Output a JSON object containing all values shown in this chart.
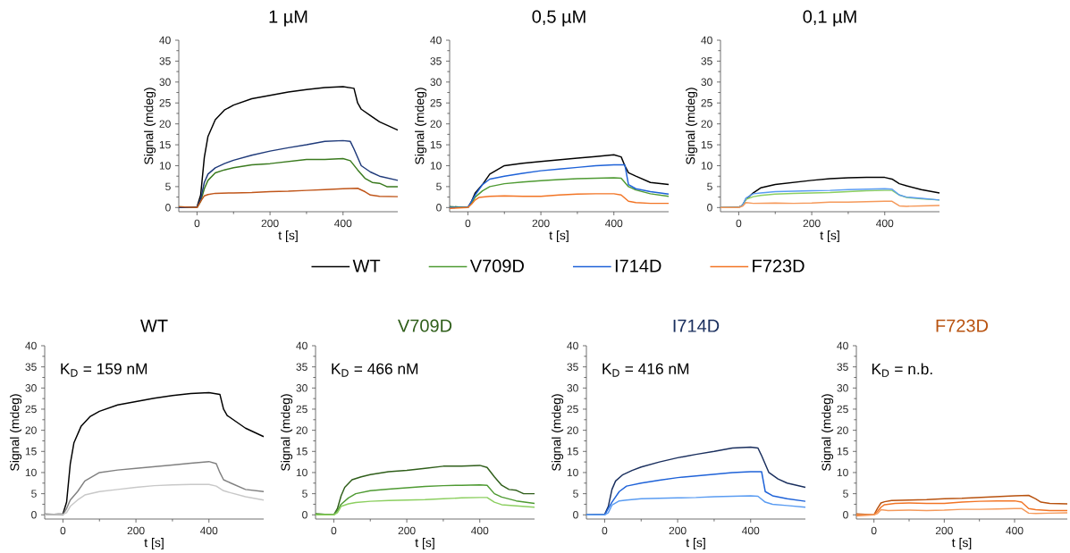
{
  "chart_data": [
    {
      "type": "line",
      "title": "1 µM",
      "xlabel": "t [s]",
      "ylabel": "Signal (mdeg)",
      "xlim": [
        -50,
        550
      ],
      "ylim": [
        -1,
        40
      ],
      "xticks": [
        0,
        200,
        400
      ],
      "yticks": [
        0,
        5,
        10,
        15,
        20,
        25,
        30,
        35,
        40
      ],
      "series": [
        {
          "color": "#000000",
          "x": [
            -50,
            0,
            10,
            20,
            30,
            50,
            75,
            100,
            150,
            200,
            250,
            300,
            350,
            400,
            430,
            440,
            450,
            475,
            500,
            550
          ],
          "values": [
            0,
            0.2,
            3,
            12,
            17,
            21,
            23.3,
            24.5,
            26,
            26.8,
            27.6,
            28.2,
            28.7,
            28.9,
            28.5,
            25,
            23.5,
            22,
            20.5,
            18.5
          ]
        },
        {
          "color": "#3a7a1e",
          "x": [
            -50,
            0,
            10,
            20,
            30,
            50,
            75,
            100,
            150,
            200,
            250,
            300,
            350,
            400,
            420,
            440,
            460,
            480,
            500,
            520,
            550
          ],
          "values": [
            0.2,
            0,
            1.5,
            4.5,
            6.5,
            8.3,
            9,
            9.5,
            10.2,
            10.5,
            11,
            11.5,
            11.5,
            11.7,
            11.2,
            9,
            7,
            6,
            5.8,
            5,
            5
          ]
        },
        {
          "color": "#1f3a7a",
          "x": [
            -50,
            0,
            10,
            20,
            30,
            50,
            75,
            100,
            150,
            200,
            250,
            300,
            350,
            400,
            420,
            430,
            450,
            475,
            500,
            550
          ],
          "values": [
            0,
            0.1,
            2,
            6,
            8,
            9.5,
            10.5,
            11.3,
            12.5,
            13.5,
            14.3,
            15,
            15.8,
            16,
            15.8,
            14,
            10,
            8.5,
            7.5,
            6.5
          ]
        },
        {
          "color": "#c0561a",
          "x": [
            -50,
            0,
            10,
            20,
            30,
            50,
            100,
            150,
            200,
            250,
            300,
            350,
            400,
            440,
            460,
            475,
            500,
            550
          ],
          "values": [
            0.2,
            0,
            1.5,
            2.8,
            3.1,
            3.4,
            3.5,
            3.6,
            3.8,
            3.9,
            4.1,
            4.3,
            4.5,
            4.6,
            3.8,
            3,
            2.7,
            2.6
          ]
        }
      ]
    },
    {
      "type": "line",
      "title": "0,5 µM",
      "xlabel": "t [s]",
      "ylabel": "Signal (mdeg)",
      "xlim": [
        -50,
        550
      ],
      "ylim": [
        -1,
        40
      ],
      "xticks": [
        0,
        200,
        400
      ],
      "yticks": [
        0,
        5,
        10,
        15,
        20,
        25,
        30,
        35,
        40
      ],
      "legend": "bottom",
      "series": [
        {
          "name": "WT",
          "color": "#000000",
          "x": [
            -50,
            0,
            10,
            20,
            40,
            60,
            100,
            150,
            200,
            250,
            300,
            350,
            400,
            420,
            430,
            440,
            460,
            500,
            550
          ],
          "values": [
            0.2,
            0,
            1.5,
            3.5,
            5.5,
            8,
            10,
            10.6,
            11,
            11.4,
            11.8,
            12.2,
            12.6,
            12.1,
            10,
            8.3,
            7.5,
            6,
            5.5
          ]
        },
        {
          "name": "V709D",
          "color": "#4e9a32",
          "x": [
            -50,
            0,
            10,
            20,
            40,
            60,
            100,
            150,
            200,
            250,
            300,
            350,
            400,
            420,
            440,
            460,
            500,
            550
          ],
          "values": [
            0.2,
            0,
            1,
            2.5,
            4,
            5,
            5.7,
            6.1,
            6.4,
            6.7,
            6.9,
            7,
            7.1,
            7,
            5,
            4.2,
            3.3,
            2.7
          ]
        },
        {
          "name": "I714D",
          "color": "#1e62d8",
          "x": [
            -50,
            0,
            10,
            20,
            40,
            60,
            100,
            150,
            200,
            250,
            300,
            350,
            400,
            430,
            440,
            460,
            500,
            550
          ],
          "values": [
            0,
            0,
            1.5,
            3,
            5.5,
            6.8,
            7.5,
            8.2,
            8.8,
            9.2,
            9.6,
            10,
            10.2,
            10.2,
            5.5,
            4.5,
            3.8,
            3.2
          ]
        },
        {
          "name": "F723D",
          "color": "#f27424",
          "x": [
            -50,
            0,
            10,
            20,
            30,
            60,
            100,
            150,
            200,
            250,
            300,
            350,
            400,
            420,
            440,
            460,
            500,
            550
          ],
          "values": [
            -0.2,
            0,
            0.8,
            1.8,
            2.4,
            2.7,
            2.8,
            2.7,
            2.7,
            3,
            3.2,
            3.3,
            3.3,
            3,
            1.5,
            1.2,
            1,
            1
          ]
        }
      ]
    },
    {
      "type": "line",
      "title": "0,1 µM",
      "xlabel": "t [s]",
      "ylabel": "Signal (mdeg)",
      "xlim": [
        -50,
        550
      ],
      "ylim": [
        -1,
        40
      ],
      "xticks": [
        0,
        200,
        400
      ],
      "yticks": [
        0,
        5,
        10,
        15,
        20,
        25,
        30,
        35,
        40
      ],
      "series": [
        {
          "color": "#000000",
          "x": [
            -50,
            0,
            10,
            20,
            40,
            60,
            100,
            150,
            200,
            250,
            300,
            350,
            400,
            420,
            440,
            460,
            500,
            550
          ],
          "values": [
            0,
            0.1,
            0.5,
            2,
            3.5,
            4.7,
            5.5,
            6,
            6.5,
            6.9,
            7.1,
            7.2,
            7.2,
            6.8,
            5.7,
            5.2,
            4.3,
            3.5
          ]
        },
        {
          "color": "#8ccf60",
          "x": [
            -50,
            0,
            10,
            20,
            40,
            60,
            100,
            150,
            200,
            250,
            300,
            350,
            400,
            420,
            440,
            460,
            500,
            550
          ],
          "values": [
            0,
            0,
            0.5,
            2,
            2.6,
            2.9,
            3.2,
            3.4,
            3.5,
            3.6,
            3.8,
            4,
            4.1,
            4.1,
            3,
            2.4,
            2.1,
            1.8
          ]
        },
        {
          "color": "#5a9cf2",
          "x": [
            -50,
            0,
            10,
            20,
            40,
            60,
            100,
            150,
            200,
            250,
            300,
            350,
            400,
            420,
            440,
            460,
            500,
            550
          ],
          "values": [
            0,
            0,
            0.5,
            2.3,
            3.3,
            3.5,
            3.8,
            3.9,
            4,
            4.1,
            4.3,
            4.4,
            4.5,
            4.4,
            3,
            2.5,
            2.2,
            1.8
          ]
        },
        {
          "color": "#f5995a",
          "x": [
            -50,
            0,
            10,
            20,
            40,
            100,
            150,
            200,
            250,
            300,
            350,
            400,
            420,
            440,
            460,
            500,
            550
          ],
          "values": [
            0,
            0,
            0.3,
            1.2,
            1,
            1.1,
            1,
            1.1,
            1.3,
            1.3,
            1.4,
            1.5,
            1.5,
            0.4,
            0.3,
            0.4,
            0.5
          ]
        }
      ]
    },
    {
      "type": "line",
      "title": "WT",
      "xlabel": "t [s]",
      "ylabel": "Signal (mdeg)",
      "xlim": [
        -50,
        550
      ],
      "ylim": [
        -1,
        40
      ],
      "xticks": [
        0,
        200,
        400
      ],
      "yticks": [
        0,
        5,
        10,
        15,
        20,
        25,
        30,
        35,
        40
      ],
      "annotations": [
        "K$_{D}$ = 159 nM"
      ],
      "series": [
        {
          "color": "#000000",
          "x": [
            -50,
            0,
            10,
            20,
            30,
            50,
            75,
            100,
            150,
            200,
            250,
            300,
            350,
            400,
            430,
            440,
            450,
            475,
            500,
            550
          ],
          "values": [
            0,
            0.2,
            3,
            12,
            17,
            21,
            23.3,
            24.5,
            26,
            26.8,
            27.6,
            28.2,
            28.7,
            28.9,
            28.5,
            25,
            23.5,
            22,
            20.5,
            18.5
          ]
        },
        {
          "color": "#808080",
          "x": [
            -50,
            0,
            10,
            20,
            40,
            60,
            100,
            150,
            200,
            250,
            300,
            350,
            400,
            420,
            430,
            440,
            460,
            500,
            550
          ],
          "values": [
            0.2,
            0,
            1.5,
            3.5,
            5.5,
            8,
            10,
            10.6,
            11,
            11.4,
            11.8,
            12.2,
            12.6,
            12.1,
            10,
            8.3,
            7.5,
            6,
            5.5
          ]
        },
        {
          "color": "#c8c8c8",
          "x": [
            -50,
            0,
            10,
            20,
            40,
            60,
            100,
            150,
            200,
            250,
            300,
            350,
            400,
            420,
            440,
            460,
            500,
            550
          ],
          "values": [
            0,
            0.1,
            0.5,
            2,
            3.5,
            4.7,
            5.5,
            6,
            6.5,
            6.9,
            7.1,
            7.2,
            7.2,
            6.8,
            5.7,
            5.2,
            4.3,
            3.5
          ]
        }
      ]
    },
    {
      "type": "line",
      "title": "V709D",
      "xlabel": "t [s]",
      "ylabel": "Signal (mdeg)",
      "xlim": [
        -50,
        550
      ],
      "ylim": [
        -1,
        40
      ],
      "xticks": [
        0,
        200,
        400
      ],
      "yticks": [
        0,
        5,
        10,
        15,
        20,
        25,
        30,
        35,
        40
      ],
      "annotations": [
        "K$_{D}$ = 466 nM"
      ],
      "series": [
        {
          "color": "#2f5e1a",
          "x": [
            -50,
            0,
            10,
            20,
            30,
            50,
            75,
            100,
            150,
            200,
            250,
            300,
            350,
            400,
            420,
            440,
            460,
            480,
            500,
            520,
            550
          ],
          "values": [
            0.2,
            0,
            1.5,
            4.5,
            6.5,
            8.3,
            9,
            9.5,
            10.2,
            10.5,
            11,
            11.5,
            11.5,
            11.7,
            11.2,
            9,
            7,
            6,
            5.8,
            5,
            5
          ]
        },
        {
          "color": "#4e9a32",
          "x": [
            -50,
            0,
            10,
            20,
            40,
            60,
            100,
            150,
            200,
            250,
            300,
            350,
            400,
            420,
            440,
            460,
            500,
            550
          ],
          "values": [
            0.2,
            0,
            1,
            2.5,
            4,
            5,
            5.7,
            6.1,
            6.4,
            6.7,
            6.9,
            7,
            7.1,
            7,
            5,
            4.2,
            3.3,
            2.7
          ]
        },
        {
          "color": "#8ccf60",
          "x": [
            -50,
            0,
            10,
            20,
            40,
            60,
            100,
            150,
            200,
            250,
            300,
            350,
            400,
            420,
            440,
            460,
            500,
            550
          ],
          "values": [
            0,
            0,
            0.5,
            2,
            2.6,
            2.9,
            3.2,
            3.4,
            3.5,
            3.6,
            3.8,
            4,
            4.1,
            4.1,
            3,
            2.4,
            2.1,
            1.8
          ]
        }
      ]
    },
    {
      "type": "line",
      "title": "I714D",
      "xlabel": "t [s]",
      "ylabel": "Signal (mdeg)",
      "xlim": [
        -50,
        550
      ],
      "ylim": [
        -1,
        40
      ],
      "xticks": [
        0,
        200,
        400
      ],
      "yticks": [
        0,
        5,
        10,
        15,
        20,
        25,
        30,
        35,
        40
      ],
      "annotations": [
        "K$_{D}$ = 416 nM"
      ],
      "series": [
        {
          "color": "#1a2f5e",
          "x": [
            -50,
            0,
            10,
            20,
            30,
            50,
            75,
            100,
            150,
            200,
            250,
            300,
            350,
            400,
            420,
            430,
            450,
            475,
            500,
            550
          ],
          "values": [
            0,
            0.1,
            2,
            6,
            8,
            9.5,
            10.5,
            11.3,
            12.5,
            13.5,
            14.3,
            15,
            15.8,
            16,
            15.8,
            14,
            10,
            8.5,
            7.5,
            6.5
          ]
        },
        {
          "color": "#1e62d8",
          "x": [
            -50,
            0,
            10,
            20,
            40,
            60,
            100,
            150,
            200,
            250,
            300,
            350,
            400,
            430,
            440,
            460,
            500,
            550
          ],
          "values": [
            0,
            0,
            1.5,
            3,
            5.5,
            6.8,
            7.5,
            8.2,
            8.8,
            9.2,
            9.6,
            10,
            10.2,
            10.2,
            5.5,
            4.5,
            3.8,
            3.2
          ]
        },
        {
          "color": "#5a9cf2",
          "x": [
            -50,
            0,
            10,
            20,
            40,
            60,
            100,
            150,
            200,
            250,
            300,
            350,
            400,
            420,
            440,
            460,
            500,
            550
          ],
          "values": [
            0,
            0,
            0.5,
            2.3,
            3.3,
            3.5,
            3.8,
            3.9,
            4,
            4.1,
            4.3,
            4.4,
            4.5,
            4.4,
            3,
            2.5,
            2.2,
            1.8
          ]
        }
      ]
    },
    {
      "type": "line",
      "title": "F723D",
      "xlabel": "t [s]",
      "ylabel": "Signal (mdeg)",
      "xlim": [
        -50,
        550
      ],
      "ylim": [
        -1,
        40
      ],
      "xticks": [
        0,
        200,
        400
      ],
      "yticks": [
        0,
        5,
        10,
        15,
        20,
        25,
        30,
        35,
        40
      ],
      "annotations": [
        "K$_{D}$ = n.b."
      ],
      "series": [
        {
          "color": "#b8520f",
          "x": [
            -50,
            0,
            10,
            20,
            30,
            50,
            100,
            150,
            200,
            250,
            300,
            350,
            400,
            440,
            460,
            475,
            500,
            550
          ],
          "values": [
            0.2,
            0,
            1.5,
            2.8,
            3.1,
            3.4,
            3.5,
            3.6,
            3.8,
            3.9,
            4.1,
            4.3,
            4.5,
            4.6,
            3.8,
            3,
            2.7,
            2.6
          ]
        },
        {
          "color": "#f27424",
          "x": [
            -50,
            0,
            10,
            20,
            30,
            60,
            100,
            150,
            200,
            250,
            300,
            350,
            400,
            420,
            440,
            460,
            500,
            550
          ],
          "values": [
            -0.2,
            0,
            0.8,
            1.8,
            2.4,
            2.7,
            2.8,
            2.7,
            2.7,
            3,
            3.2,
            3.3,
            3.3,
            3,
            1.5,
            1.2,
            1,
            1
          ]
        },
        {
          "color": "#f5995a",
          "x": [
            -50,
            0,
            10,
            20,
            40,
            100,
            150,
            200,
            250,
            300,
            350,
            400,
            420,
            440,
            460,
            500,
            550
          ],
          "values": [
            0,
            0,
            0.3,
            1.2,
            1,
            1.1,
            1,
            1.1,
            1.3,
            1.3,
            1.4,
            1.5,
            1.5,
            0.4,
            0.3,
            0.4,
            0.5
          ]
        }
      ]
    }
  ]
}
